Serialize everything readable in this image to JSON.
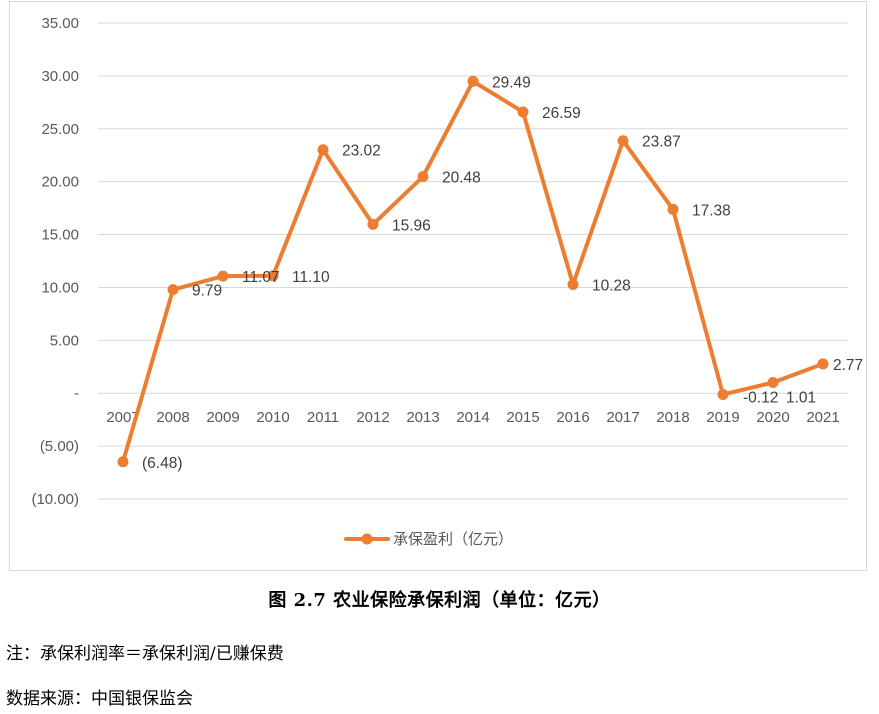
{
  "chart_data": {
    "type": "line",
    "categories": [
      "2007",
      "2008",
      "2009",
      "2010",
      "2011",
      "2012",
      "2013",
      "2014",
      "2015",
      "2016",
      "2017",
      "2018",
      "2019",
      "2020",
      "2021"
    ],
    "series": [
      {
        "name": "承保盈利（亿元）",
        "color": "#ED7D31",
        "values": [
          -6.48,
          9.79,
          11.07,
          11.1,
          23.02,
          15.96,
          20.48,
          29.49,
          26.59,
          10.28,
          23.87,
          17.38,
          -0.12,
          1.01,
          2.77
        ],
        "labels": [
          "(6.48)",
          "9.79",
          "11.07",
          "11.10",
          "23.02",
          "15.96",
          "20.48",
          "29.49",
          "26.59",
          "10.28",
          "23.87",
          "17.38",
          "-0.12",
          "1.01",
          "2.77"
        ]
      }
    ],
    "ylim": [
      -10,
      35
    ],
    "yticks": [
      35,
      30,
      25,
      20,
      15,
      10,
      5,
      0,
      -5,
      -10
    ],
    "ytick_labels": [
      "35.00",
      "30.00",
      "25.00",
      "20.00",
      "15.00",
      "10.00",
      "5.00",
      "-",
      "(5.00)",
      "(10.00)"
    ],
    "grid": true,
    "legend": "bottom",
    "xlabel": "",
    "ylabel": ""
  },
  "caption": "图 2.7  农业保险承保利润（单位：亿元）",
  "note": "注：承保利润率＝承保利润/已赚保费",
  "source": "数据来源：中国银保监会"
}
